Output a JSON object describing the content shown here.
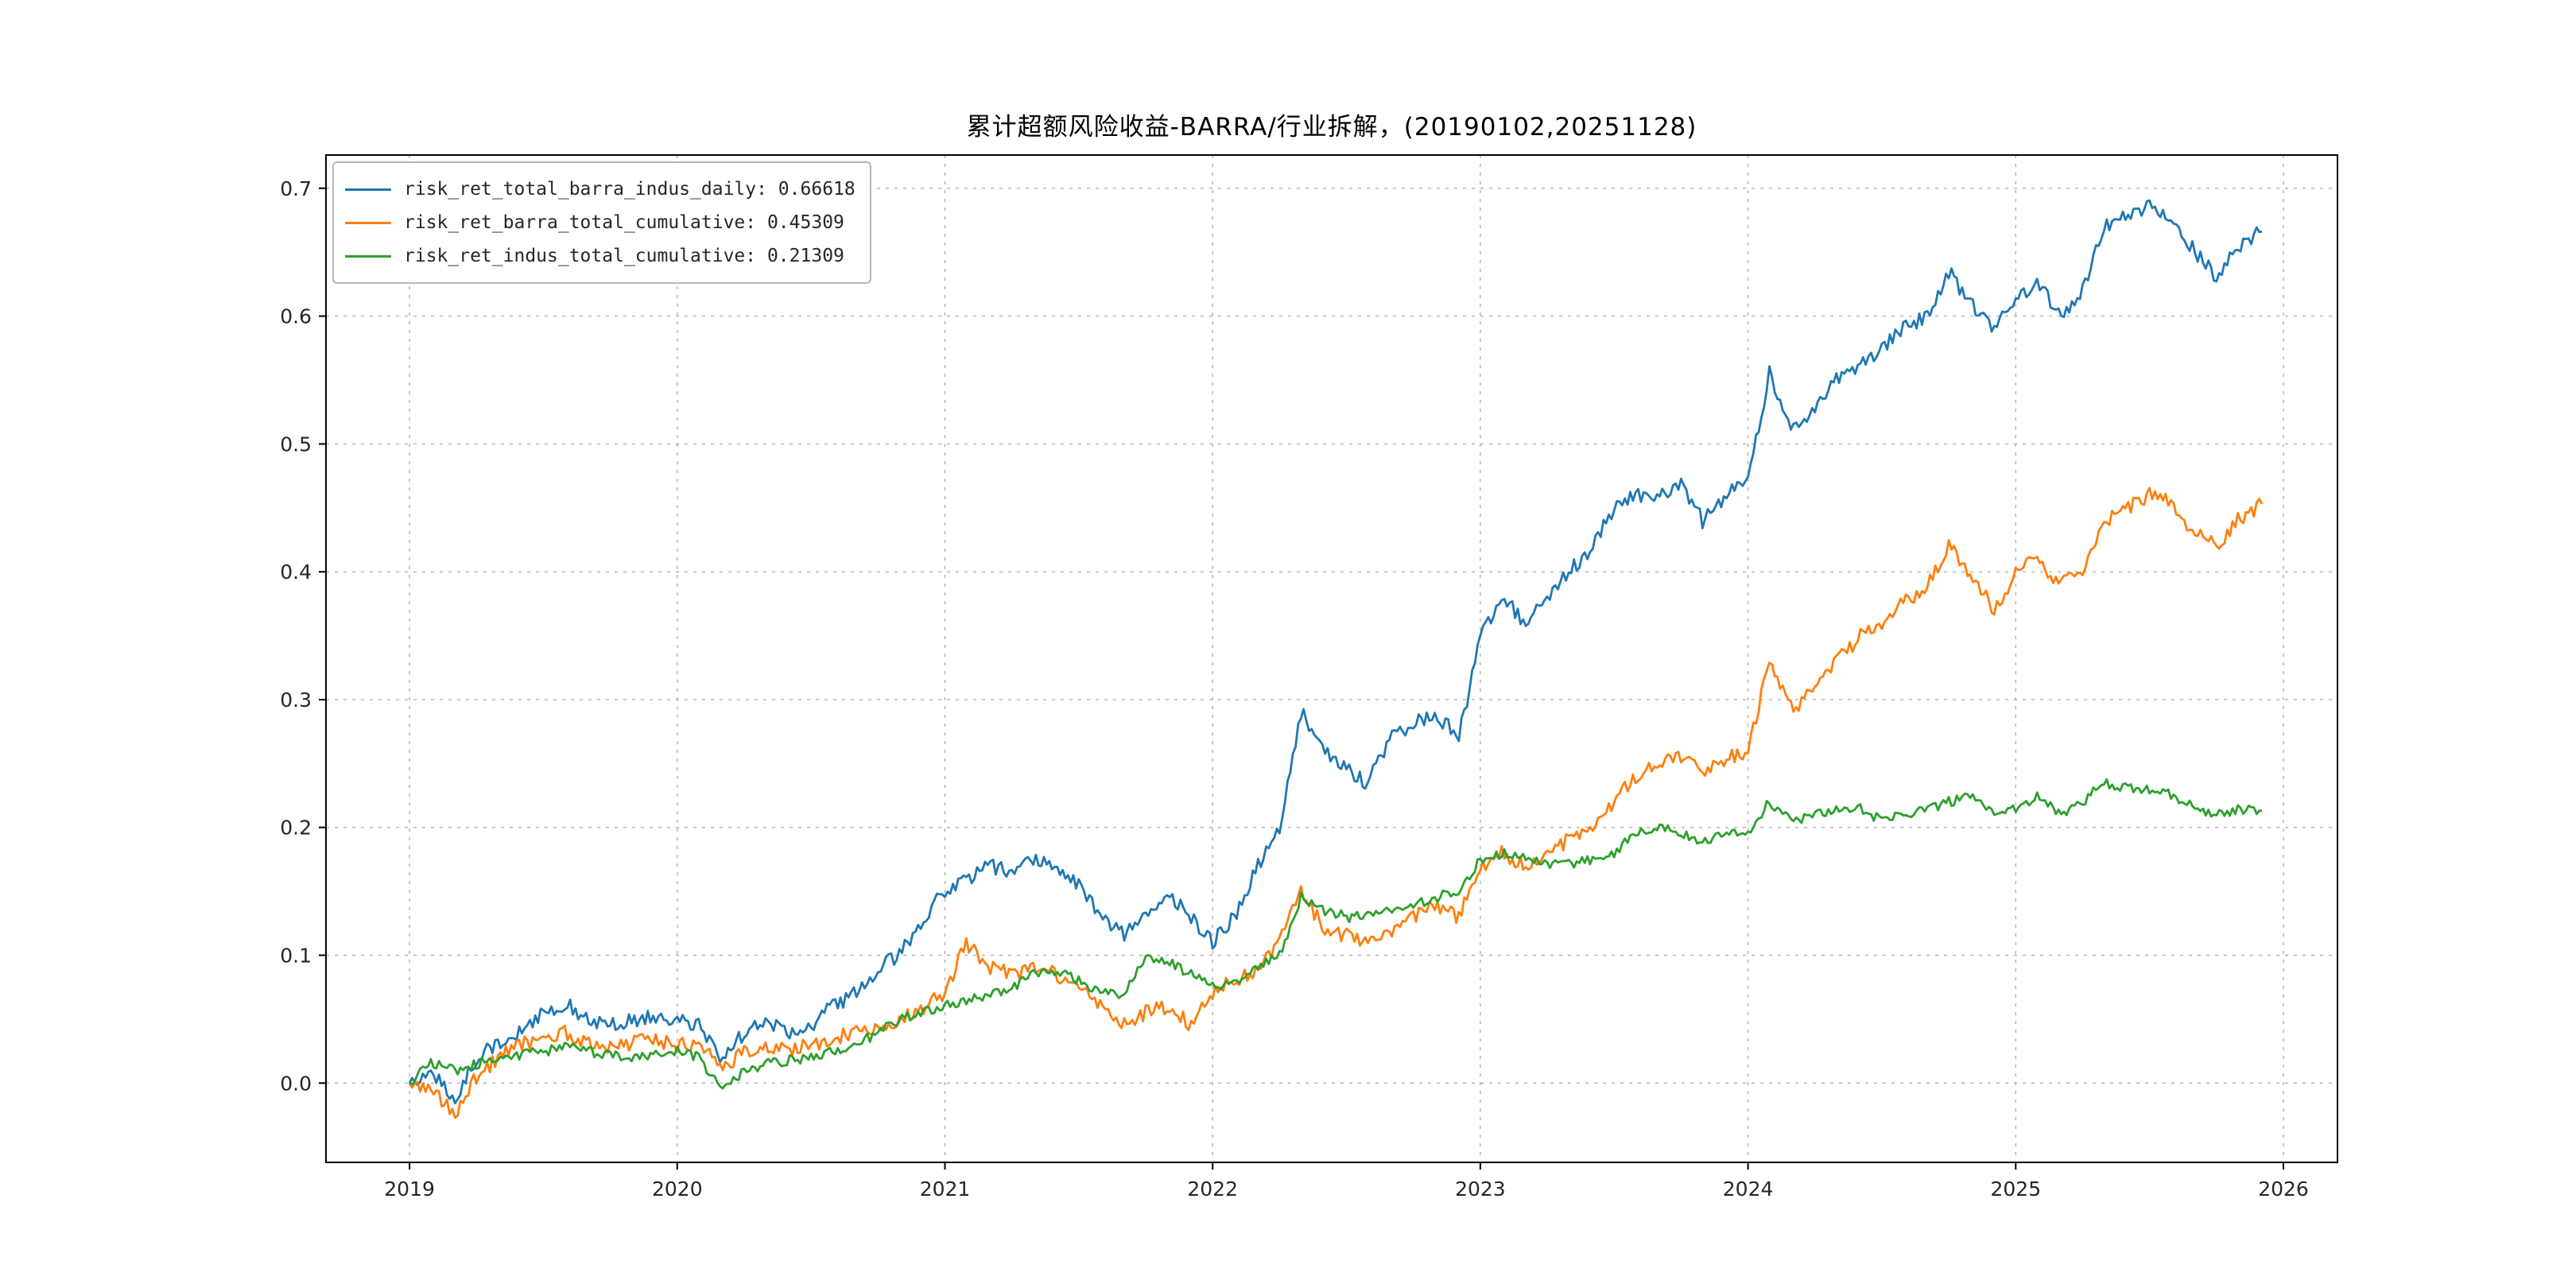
{
  "chart_data": {
    "type": "line",
    "title": "累计超额风险收益-BARRA/行业拆解，(20190102,20251128)",
    "xlabel": "",
    "ylabel": "",
    "x_range": [
      2018.688,
      2026.202
    ],
    "y_range": [
      -0.062,
      0.726
    ],
    "x_ticks": [
      2019,
      2020,
      2021,
      2022,
      2023,
      2024,
      2025,
      2026
    ],
    "y_ticks": [
      0.0,
      0.1,
      0.2,
      0.3,
      0.4,
      0.5,
      0.6,
      0.7
    ],
    "grid": true,
    "legend_position": "upper left",
    "x": [
      2019.0,
      2019.08,
      2019.17,
      2019.25,
      2019.33,
      2019.42,
      2019.5,
      2019.58,
      2019.67,
      2019.75,
      2019.83,
      2019.92,
      2020.0,
      2020.08,
      2020.17,
      2020.25,
      2020.33,
      2020.42,
      2020.5,
      2020.58,
      2020.67,
      2020.75,
      2020.83,
      2020.92,
      2021.0,
      2021.08,
      2021.17,
      2021.25,
      2021.33,
      2021.42,
      2021.5,
      2021.58,
      2021.67,
      2021.75,
      2021.83,
      2021.92,
      2022.0,
      2022.08,
      2022.17,
      2022.25,
      2022.33,
      2022.42,
      2022.5,
      2022.58,
      2022.67,
      2022.75,
      2022.83,
      2022.92,
      2023.0,
      2023.08,
      2023.17,
      2023.25,
      2023.33,
      2023.42,
      2023.5,
      2023.58,
      2023.67,
      2023.75,
      2023.83,
      2023.92,
      2024.0,
      2024.08,
      2024.17,
      2024.25,
      2024.33,
      2024.42,
      2024.5,
      2024.58,
      2024.67,
      2024.75,
      2024.83,
      2024.92,
      2025.0,
      2025.08,
      2025.17,
      2025.25,
      2025.33,
      2025.42,
      2025.5,
      2025.58,
      2025.67,
      2025.75,
      2025.83,
      2025.92
    ],
    "series": [
      {
        "name": "risk_ret_total_barra_indus_daily: 0.66618",
        "final_value": 0.66618,
        "color": "#1f77b4",
        "values": [
          0.0,
          0.01,
          -0.015,
          0.02,
          0.03,
          0.04,
          0.055,
          0.062,
          0.05,
          0.045,
          0.05,
          0.052,
          0.05,
          0.045,
          0.018,
          0.04,
          0.05,
          0.04,
          0.045,
          0.06,
          0.07,
          0.09,
          0.1,
          0.13,
          0.15,
          0.16,
          0.17,
          0.165,
          0.175,
          0.17,
          0.155,
          0.13,
          0.115,
          0.13,
          0.15,
          0.13,
          0.11,
          0.13,
          0.17,
          0.2,
          0.29,
          0.26,
          0.245,
          0.235,
          0.27,
          0.28,
          0.29,
          0.27,
          0.35,
          0.38,
          0.36,
          0.38,
          0.4,
          0.42,
          0.45,
          0.46,
          0.46,
          0.47,
          0.44,
          0.46,
          0.47,
          0.555,
          0.51,
          0.53,
          0.55,
          0.56,
          0.575,
          0.59,
          0.6,
          0.635,
          0.61,
          0.59,
          0.615,
          0.625,
          0.6,
          0.62,
          0.67,
          0.68,
          0.685,
          0.68,
          0.65,
          0.63,
          0.655,
          0.66618
        ]
      },
      {
        "name": "risk_ret_barra_total_cumulative: 0.45309",
        "final_value": 0.45309,
        "color": "#ff7f0e",
        "values": [
          0.0,
          -0.005,
          -0.025,
          0.005,
          0.02,
          0.03,
          0.035,
          0.04,
          0.03,
          0.028,
          0.032,
          0.033,
          0.03,
          0.028,
          0.012,
          0.025,
          0.03,
          0.025,
          0.03,
          0.035,
          0.04,
          0.045,
          0.05,
          0.06,
          0.07,
          0.11,
          0.09,
          0.085,
          0.09,
          0.085,
          0.075,
          0.06,
          0.045,
          0.055,
          0.06,
          0.045,
          0.07,
          0.08,
          0.09,
          0.11,
          0.15,
          0.12,
          0.115,
          0.11,
          0.12,
          0.13,
          0.14,
          0.13,
          0.17,
          0.18,
          0.17,
          0.18,
          0.19,
          0.2,
          0.22,
          0.24,
          0.25,
          0.255,
          0.245,
          0.255,
          0.26,
          0.33,
          0.29,
          0.31,
          0.33,
          0.35,
          0.36,
          0.375,
          0.39,
          0.42,
          0.4,
          0.37,
          0.4,
          0.41,
          0.39,
          0.4,
          0.44,
          0.45,
          0.46,
          0.455,
          0.43,
          0.42,
          0.44,
          0.45309
        ]
      },
      {
        "name": "risk_ret_indus_total_cumulative: 0.21309",
        "final_value": 0.21309,
        "color": "#2ca02c",
        "values": [
          0.0,
          0.015,
          0.01,
          0.015,
          0.02,
          0.022,
          0.025,
          0.028,
          0.025,
          0.022,
          0.02,
          0.022,
          0.025,
          0.02,
          -0.005,
          0.01,
          0.015,
          0.018,
          0.02,
          0.025,
          0.03,
          0.04,
          0.05,
          0.055,
          0.06,
          0.065,
          0.07,
          0.075,
          0.085,
          0.088,
          0.08,
          0.07,
          0.068,
          0.1,
          0.095,
          0.085,
          0.075,
          0.08,
          0.09,
          0.1,
          0.145,
          0.135,
          0.13,
          0.13,
          0.135,
          0.14,
          0.145,
          0.15,
          0.175,
          0.18,
          0.175,
          0.17,
          0.172,
          0.175,
          0.18,
          0.195,
          0.2,
          0.195,
          0.19,
          0.195,
          0.195,
          0.22,
          0.205,
          0.21,
          0.215,
          0.215,
          0.205,
          0.21,
          0.215,
          0.22,
          0.225,
          0.21,
          0.215,
          0.225,
          0.21,
          0.22,
          0.235,
          0.23,
          0.23,
          0.225,
          0.215,
          0.21,
          0.215,
          0.21309
        ]
      }
    ]
  }
}
